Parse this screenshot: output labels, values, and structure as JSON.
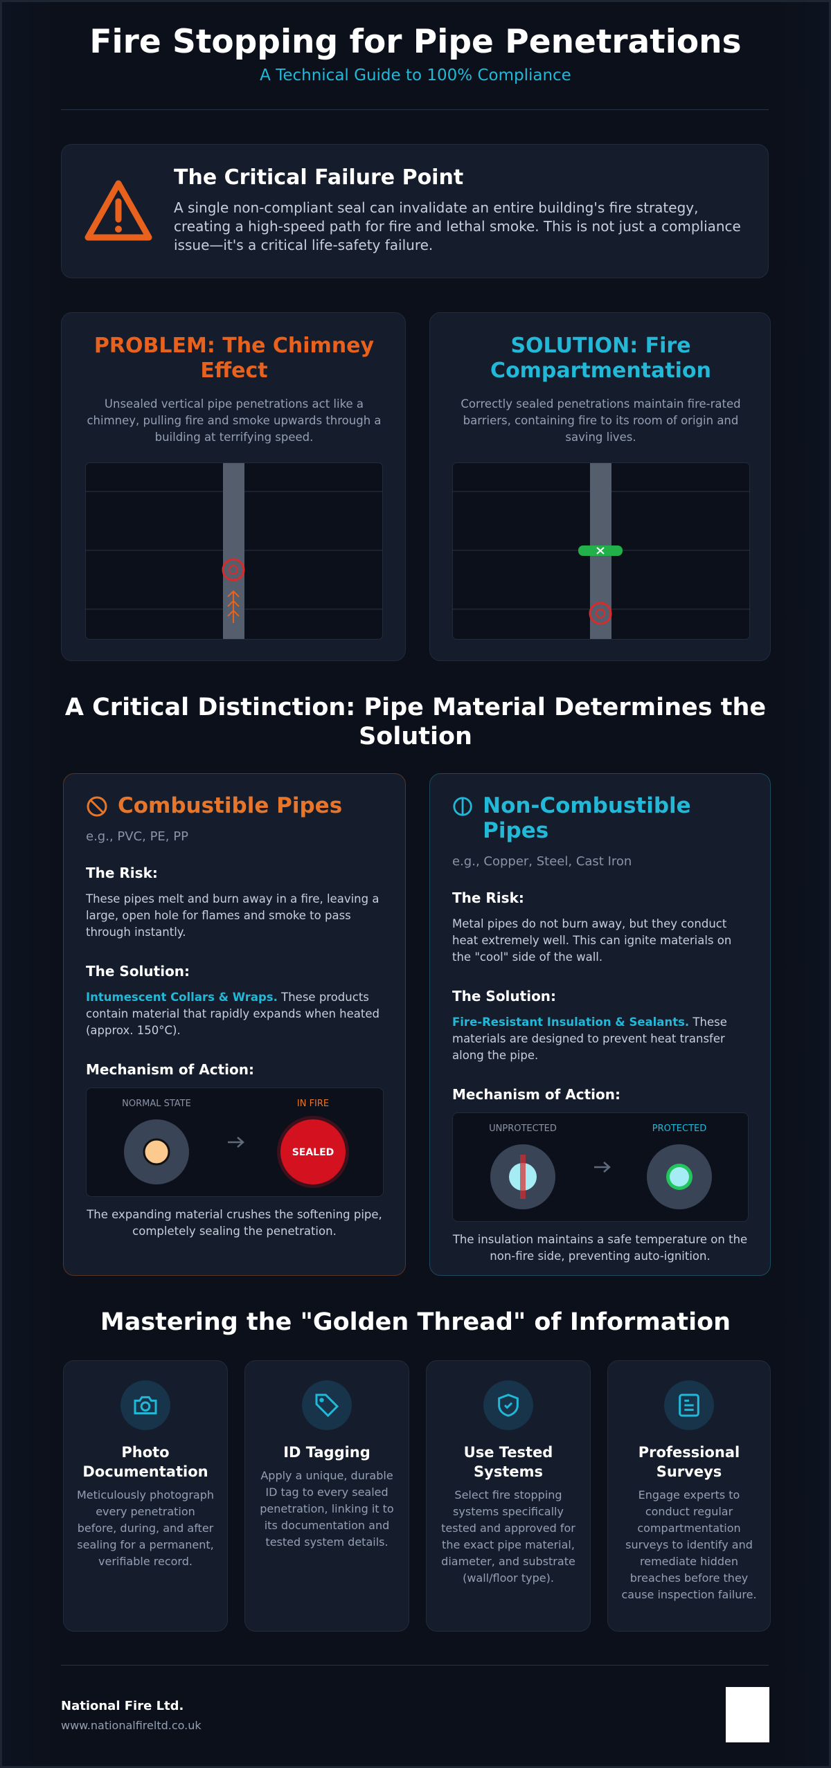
{
  "header": {
    "title": "Fire Stopping for Pipe Penetrations",
    "subtitle": "A Technical Guide to 100% Compliance"
  },
  "alert": {
    "title": "The Critical Failure Point",
    "text": "A single non-compliant seal can invalidate an entire building's fire strategy, creating a high-speed path for fire and lethal smoke. This is not just a compliance issue—it's a critical life-safety failure."
  },
  "problem": {
    "title": "PROBLEM: The Chimney Effect",
    "text": "Unsealed vertical pipe penetrations act like a chimney, pulling fire and smoke upwards through a building at terrifying speed."
  },
  "solution": {
    "title": "SOLUTION: Fire Compartmentation",
    "text": "Correctly sealed penetrations maintain fire-rated barriers, containing fire to its room of origin and saving lives."
  },
  "distinction": {
    "heading": "A Critical Distinction: Pipe Material Determines the Solution"
  },
  "combustible": {
    "title": "Combustible Pipes",
    "examples": "e.g., PVC, PE, PP",
    "risk_label": "The Risk:",
    "risk_text": "These pipes melt and burn away in a fire, leaving a large, open hole for flames and smoke to pass through instantly.",
    "solution_label": "The Solution:",
    "solution_highlight": "Intumescent Collars & Wraps.",
    "solution_text": "These products contain material that rapidly expands when heated (approx. 150°C).",
    "mechanism_label": "Mechanism of Action:",
    "state_before": "NORMAL STATE",
    "state_after": "IN FIRE",
    "sealed_label": "SEALED",
    "caption": "The expanding material crushes the softening pipe, completely sealing the penetration."
  },
  "noncombustible": {
    "title": "Non-Combustible Pipes",
    "examples": "e.g., Copper, Steel, Cast Iron",
    "risk_label": "The Risk:",
    "risk_text": "Metal pipes do not burn away, but they conduct heat extremely well. This can ignite materials on the \"cool\" side of the wall.",
    "solution_label": "The Solution:",
    "solution_highlight": "Fire-Resistant Insulation & Sealants.",
    "solution_text": "These materials are designed to prevent heat transfer along the pipe.",
    "mechanism_label": "Mechanism of Action:",
    "state_before": "UNPROTECTED",
    "state_after": "PROTECTED",
    "caption": "The insulation maintains a safe temperature on the non-fire side, preventing auto-ignition."
  },
  "golden_thread": {
    "heading": "Mastering the \"Golden Thread\" of Information",
    "items": [
      {
        "title": "Photo Documentation",
        "text": "Meticulously photograph every penetration before, during, and after sealing for a permanent, verifiable record."
      },
      {
        "title": "ID Tagging",
        "text": "Apply a unique, durable ID tag to every sealed penetration, linking it to its documentation and tested system details."
      },
      {
        "title": "Use Tested Systems",
        "text": "Select fire stopping systems specifically tested and approved for the exact pipe material, diameter, and substrate (wall/floor type)."
      },
      {
        "title": "Professional Surveys",
        "text": "Engage experts to conduct regular compartmentation surveys to identify and remediate hidden breaches before they cause inspection failure."
      }
    ]
  },
  "footer": {
    "company": "National Fire Ltd.",
    "website": "www.nationalfireltd.co.uk"
  }
}
